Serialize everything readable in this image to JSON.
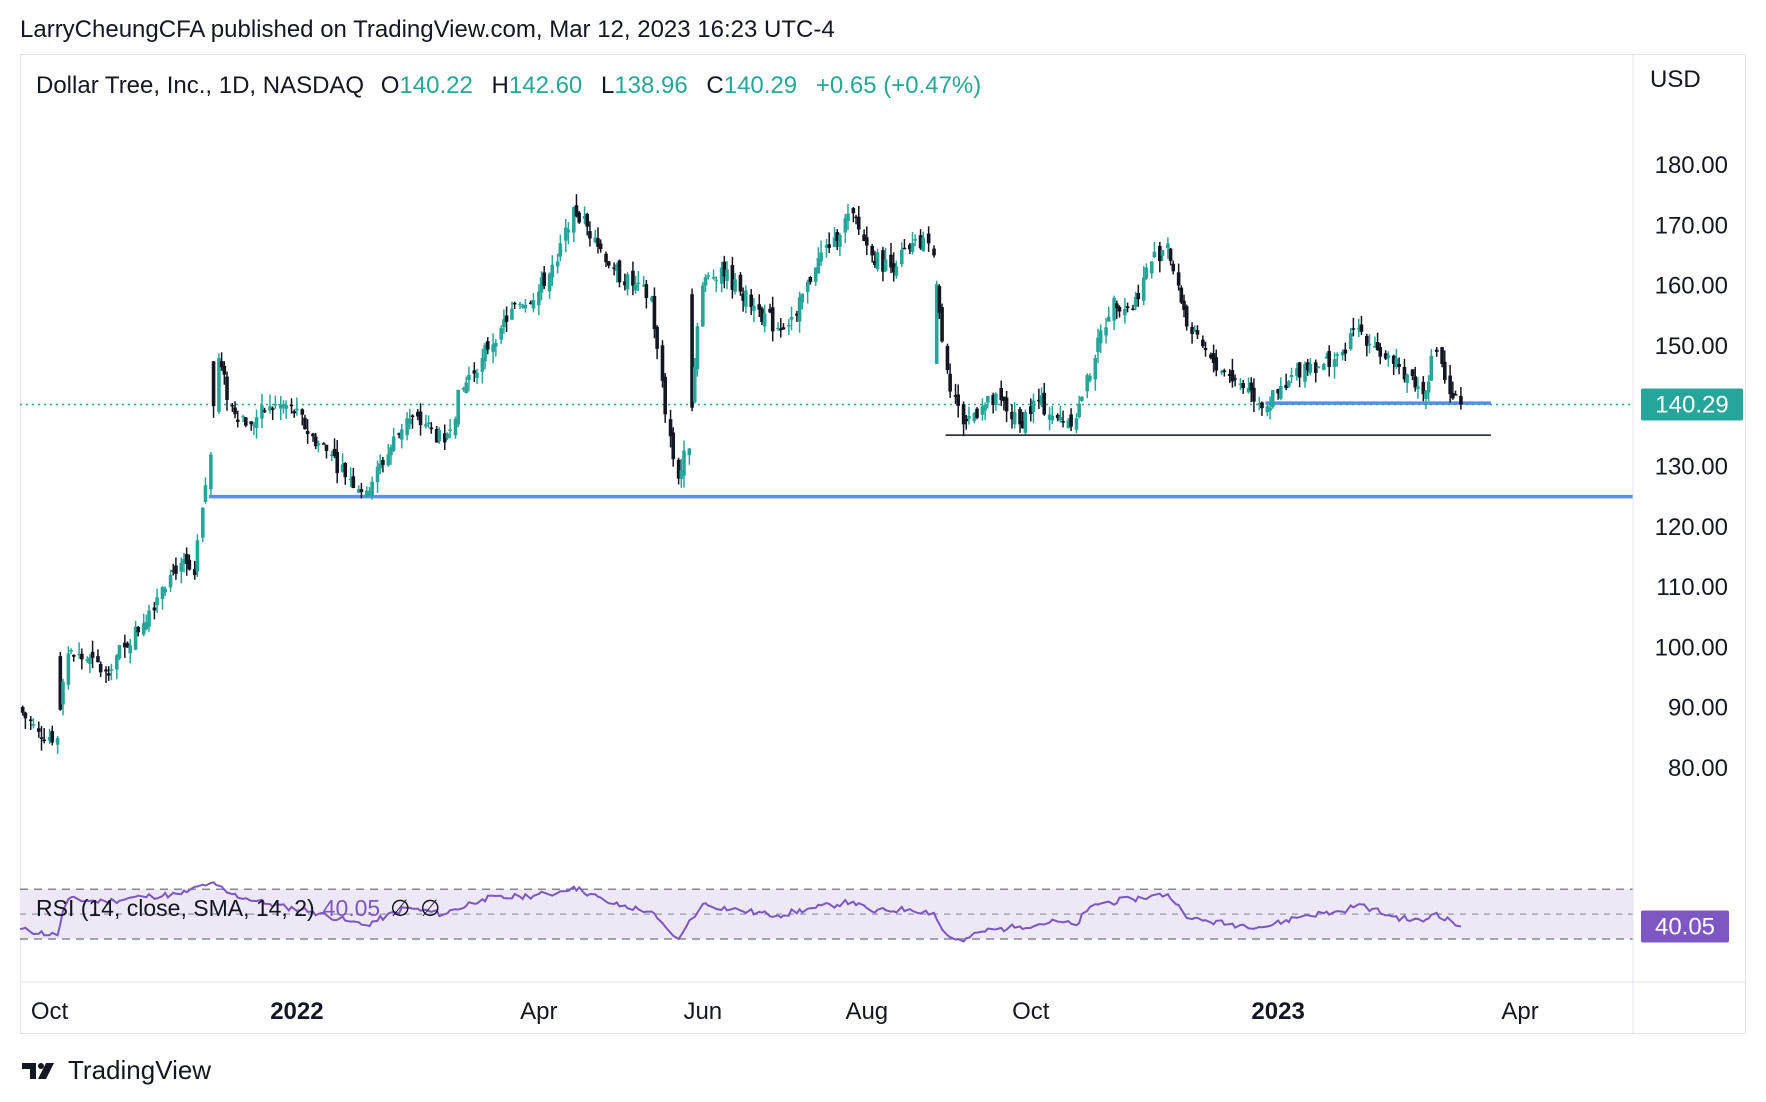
{
  "publisher_line": "LarryCheungCFA published on TradingView.com, Mar 12, 2023 16:23 UTC-4",
  "legend": {
    "symbol": "Dollar Tree, Inc., 1D, NASDAQ",
    "open_label": "O",
    "open": "140.22",
    "high_label": "H",
    "high": "142.60",
    "low_label": "L",
    "low": "138.96",
    "close_label": "C",
    "close": "140.29",
    "change": "+0.65 (+0.47%)"
  },
  "currency": "USD",
  "rsi_legend": {
    "label": "RSI (14, close, SMA, 14, 2)",
    "value": "40.05",
    "null1": "∅",
    "null2": "∅"
  },
  "brand": "TradingView",
  "colors": {
    "up": "#26a69a",
    "down": "#131722",
    "support_line": "#5b8def",
    "rsi_line": "#7e57c2",
    "rsi_band": "#ede7f6",
    "price_badge": "#26a69a",
    "rsi_badge": "#7e57c2"
  },
  "chart_data": [
    {
      "type": "candlestick",
      "title": "Dollar Tree, Inc., 1D, NASDAQ",
      "ylabel": "USD",
      "ylim": [
        80,
        180
      ],
      "y_ticks": [
        "180.00",
        "170.00",
        "160.00",
        "150.00",
        "140.00",
        "130.00",
        "120.00",
        "110.00",
        "100.00",
        "90.00",
        "80.00"
      ],
      "x_ticks": [
        "Oct",
        "2022",
        "Apr",
        "Jun",
        "Aug",
        "Oct",
        "2023",
        "Apr"
      ],
      "last_price": "140.29",
      "last_price_value": 140.29,
      "horizontal_lines": [
        {
          "level": 125,
          "from": "2021-11-30",
          "to": "2023-03-31",
          "color": "#5b8def"
        },
        {
          "level": 135.2,
          "from": "2022-08-31",
          "to": "2023-03-10",
          "color": "#131722"
        },
        {
          "level": 140.5,
          "from": "2022-12-28",
          "to": "2023-03-10",
          "color": "#5b8def"
        }
      ],
      "close_path": [
        {
          "date": "2021-09-20",
          "close": 90
        },
        {
          "date": "2021-09-27",
          "close": 86
        },
        {
          "date": "2021-10-04",
          "close": 85
        },
        {
          "date": "2021-10-08",
          "close": 99
        },
        {
          "date": "2021-10-15",
          "close": 98
        },
        {
          "date": "2021-10-22",
          "close": 96
        },
        {
          "date": "2021-10-29",
          "close": 100
        },
        {
          "date": "2021-11-05",
          "close": 104
        },
        {
          "date": "2021-11-12",
          "close": 110
        },
        {
          "date": "2021-11-15",
          "close": 112
        },
        {
          "date": "2021-11-19",
          "close": 114
        },
        {
          "date": "2021-11-24",
          "close": 112
        },
        {
          "date": "2021-11-30",
          "close": 132
        },
        {
          "date": "2021-12-03",
          "close": 148
        },
        {
          "date": "2021-12-08",
          "close": 140
        },
        {
          "date": "2021-12-15",
          "close": 137
        },
        {
          "date": "2021-12-22",
          "close": 140
        },
        {
          "date": "2021-12-30",
          "close": 140
        },
        {
          "date": "2022-01-07",
          "close": 135
        },
        {
          "date": "2022-01-14",
          "close": 132
        },
        {
          "date": "2022-01-21",
          "close": 128
        },
        {
          "date": "2022-01-27",
          "close": 126
        },
        {
          "date": "2022-02-04",
          "close": 132
        },
        {
          "date": "2022-02-11",
          "close": 138
        },
        {
          "date": "2022-02-18",
          "close": 137
        },
        {
          "date": "2022-02-25",
          "close": 134
        },
        {
          "date": "2022-03-04",
          "close": 143
        },
        {
          "date": "2022-03-11",
          "close": 148
        },
        {
          "date": "2022-03-18",
          "close": 153
        },
        {
          "date": "2022-03-25",
          "close": 157
        },
        {
          "date": "2022-04-01",
          "close": 159
        },
        {
          "date": "2022-04-08",
          "close": 164
        },
        {
          "date": "2022-04-14",
          "close": 173
        },
        {
          "date": "2022-04-22",
          "close": 168
        },
        {
          "date": "2022-04-29",
          "close": 163
        },
        {
          "date": "2022-05-06",
          "close": 160
        },
        {
          "date": "2022-05-13",
          "close": 158
        },
        {
          "date": "2022-05-20",
          "close": 135
        },
        {
          "date": "2022-05-23",
          "close": 128
        },
        {
          "date": "2022-05-27",
          "close": 133
        },
        {
          "date": "2022-06-01",
          "close": 160
        },
        {
          "date": "2022-06-08",
          "close": 163
        },
        {
          "date": "2022-06-15",
          "close": 159
        },
        {
          "date": "2022-06-22",
          "close": 156
        },
        {
          "date": "2022-06-29",
          "close": 153
        },
        {
          "date": "2022-07-06",
          "close": 155
        },
        {
          "date": "2022-07-13",
          "close": 163
        },
        {
          "date": "2022-07-20",
          "close": 168
        },
        {
          "date": "2022-07-27",
          "close": 172
        },
        {
          "date": "2022-08-03",
          "close": 165
        },
        {
          "date": "2022-08-10",
          "close": 163
        },
        {
          "date": "2022-08-17",
          "close": 166
        },
        {
          "date": "2022-08-24",
          "close": 167
        },
        {
          "date": "2022-08-26",
          "close": 165
        },
        {
          "date": "2022-08-31",
          "close": 146
        },
        {
          "date": "2022-09-06",
          "close": 137
        },
        {
          "date": "2022-09-13",
          "close": 140
        },
        {
          "date": "2022-09-20",
          "close": 141
        },
        {
          "date": "2022-09-27",
          "close": 137
        },
        {
          "date": "2022-10-04",
          "close": 141
        },
        {
          "date": "2022-10-11",
          "close": 138
        },
        {
          "date": "2022-10-18",
          "close": 138
        },
        {
          "date": "2022-10-25",
          "close": 148
        },
        {
          "date": "2022-11-01",
          "close": 158
        },
        {
          "date": "2022-11-08",
          "close": 156
        },
        {
          "date": "2022-11-15",
          "close": 164
        },
        {
          "date": "2022-11-21",
          "close": 167
        },
        {
          "date": "2022-11-25",
          "close": 160
        },
        {
          "date": "2022-11-30",
          "close": 152
        },
        {
          "date": "2022-12-07",
          "close": 148
        },
        {
          "date": "2022-12-14",
          "close": 145
        },
        {
          "date": "2022-12-21",
          "close": 143
        },
        {
          "date": "2022-12-28",
          "close": 140
        },
        {
          "date": "2023-01-04",
          "close": 143
        },
        {
          "date": "2023-01-11",
          "close": 147
        },
        {
          "date": "2023-01-18",
          "close": 147
        },
        {
          "date": "2023-01-25",
          "close": 149
        },
        {
          "date": "2023-01-31",
          "close": 153
        },
        {
          "date": "2023-02-06",
          "close": 150
        },
        {
          "date": "2023-02-13",
          "close": 147
        },
        {
          "date": "2023-02-20",
          "close": 145
        },
        {
          "date": "2023-02-24",
          "close": 142
        },
        {
          "date": "2023-03-01",
          "close": 149
        },
        {
          "date": "2023-03-03",
          "close": 147
        },
        {
          "date": "2023-03-06",
          "close": 142
        },
        {
          "date": "2023-03-10",
          "close": 140.29
        }
      ]
    },
    {
      "type": "line",
      "title": "RSI (14, close, SMA, 14, 2)",
      "last_value": "40.05",
      "ylim": [
        25,
        85
      ],
      "band_levels": [
        70,
        50,
        30
      ],
      "values": [
        {
          "date": "2021-09-20",
          "rsi": 38
        },
        {
          "date": "2021-10-04",
          "rsi": 33
        },
        {
          "date": "2021-10-08",
          "rsi": 62
        },
        {
          "date": "2021-10-22",
          "rsi": 60
        },
        {
          "date": "2021-11-05",
          "rsi": 64
        },
        {
          "date": "2021-11-19",
          "rsi": 66
        },
        {
          "date": "2021-11-30",
          "rsi": 75
        },
        {
          "date": "2021-12-08",
          "rsi": 66
        },
        {
          "date": "2021-12-22",
          "rsi": 58
        },
        {
          "date": "2022-01-07",
          "rsi": 52
        },
        {
          "date": "2022-01-21",
          "rsi": 44
        },
        {
          "date": "2022-01-27",
          "rsi": 41
        },
        {
          "date": "2022-02-11",
          "rsi": 55
        },
        {
          "date": "2022-02-25",
          "rsi": 50
        },
        {
          "date": "2022-03-11",
          "rsi": 62
        },
        {
          "date": "2022-03-25",
          "rsi": 64
        },
        {
          "date": "2022-04-08",
          "rsi": 67
        },
        {
          "date": "2022-04-14",
          "rsi": 72
        },
        {
          "date": "2022-04-29",
          "rsi": 58
        },
        {
          "date": "2022-05-13",
          "rsi": 52
        },
        {
          "date": "2022-05-20",
          "rsi": 35
        },
        {
          "date": "2022-05-23",
          "rsi": 30
        },
        {
          "date": "2022-06-01",
          "rsi": 58
        },
        {
          "date": "2022-06-15",
          "rsi": 53
        },
        {
          "date": "2022-06-29",
          "rsi": 49
        },
        {
          "date": "2022-07-13",
          "rsi": 55
        },
        {
          "date": "2022-07-27",
          "rsi": 60
        },
        {
          "date": "2022-08-03",
          "rsi": 52
        },
        {
          "date": "2022-08-17",
          "rsi": 54
        },
        {
          "date": "2022-08-26",
          "rsi": 51
        },
        {
          "date": "2022-08-31",
          "rsi": 33
        },
        {
          "date": "2022-09-06",
          "rsi": 28
        },
        {
          "date": "2022-09-13",
          "rsi": 36
        },
        {
          "date": "2022-09-27",
          "rsi": 40
        },
        {
          "date": "2022-10-11",
          "rsi": 44
        },
        {
          "date": "2022-10-18",
          "rsi": 41
        },
        {
          "date": "2022-10-25",
          "rsi": 58
        },
        {
          "date": "2022-11-08",
          "rsi": 62
        },
        {
          "date": "2022-11-21",
          "rsi": 66
        },
        {
          "date": "2022-11-30",
          "rsi": 46
        },
        {
          "date": "2022-12-14",
          "rsi": 42
        },
        {
          "date": "2022-12-28",
          "rsi": 40
        },
        {
          "date": "2023-01-11",
          "rsi": 49
        },
        {
          "date": "2023-01-25",
          "rsi": 52
        },
        {
          "date": "2023-01-31",
          "rsi": 58
        },
        {
          "date": "2023-02-13",
          "rsi": 48
        },
        {
          "date": "2023-02-24",
          "rsi": 44
        },
        {
          "date": "2023-03-01",
          "rsi": 51
        },
        {
          "date": "2023-03-10",
          "rsi": 40.05
        }
      ]
    }
  ]
}
